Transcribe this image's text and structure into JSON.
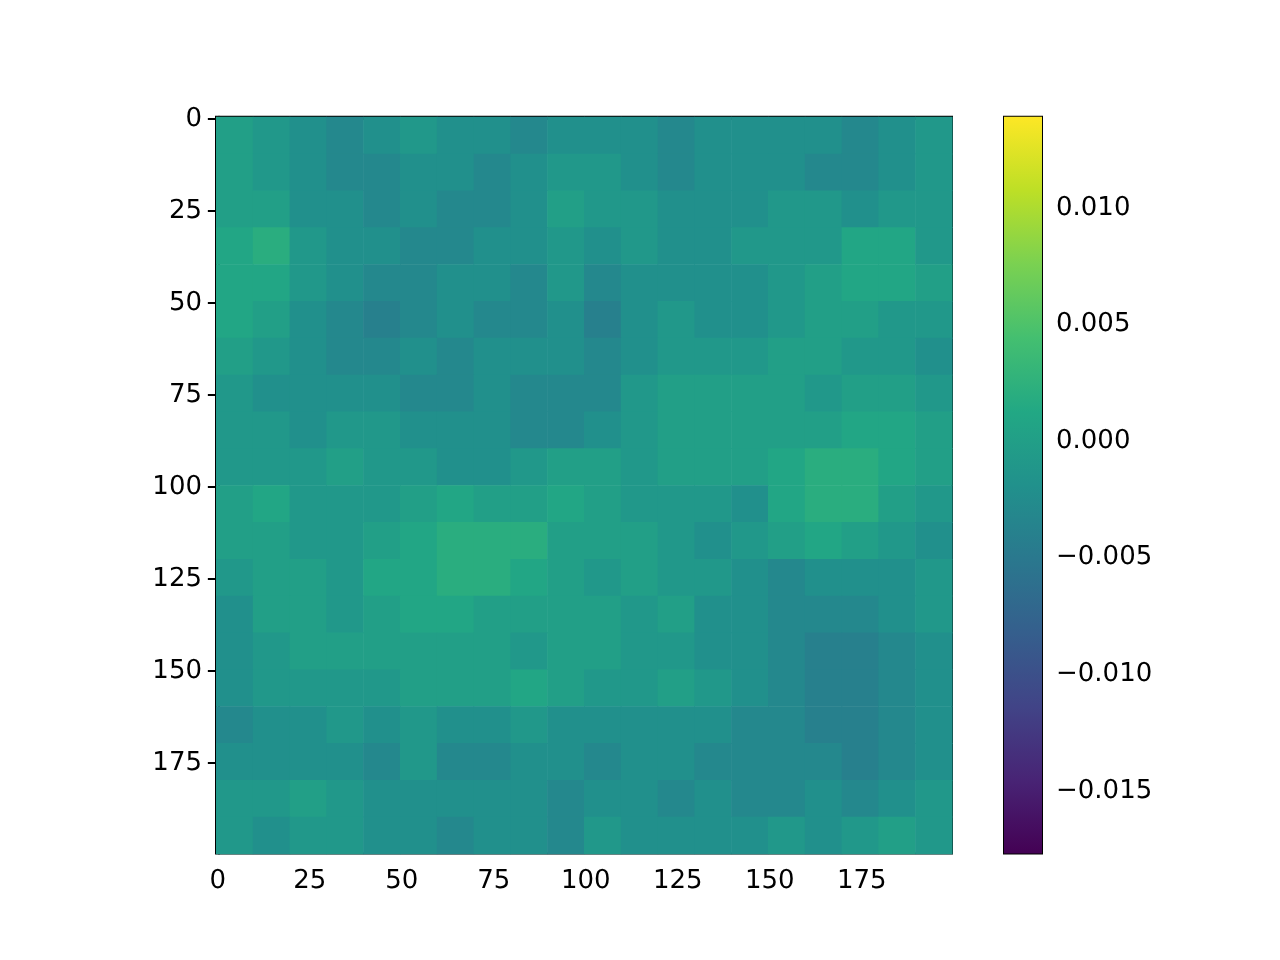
{
  "chart_data": {
    "type": "heatmap",
    "x": [
      4.5,
      14.5,
      24.5,
      34.5,
      44.5,
      54.5,
      64.5,
      74.5,
      84.5,
      94.5,
      104.5,
      114.5,
      124.5,
      134.5,
      144.5,
      154.5,
      164.5,
      174.5,
      184.5,
      194.5
    ],
    "y": [
      4.5,
      14.5,
      24.5,
      34.5,
      44.5,
      54.5,
      64.5,
      74.5,
      84.5,
      94.5,
      104.5,
      114.5,
      124.5,
      134.5,
      144.5,
      154.5,
      164.5,
      174.5,
      184.5,
      194.5
    ],
    "cells": [
      [
        0,
        -0.001,
        -0.002,
        -0.003,
        -0.002,
        -0.001,
        -0.002,
        -0.002,
        -0.003,
        -0.002,
        -0.002,
        -0.002,
        -0.003,
        -0.002,
        -0.002,
        -0.002,
        -0.002,
        -0.003,
        -0.002,
        -0.001
      ],
      [
        0,
        -0.001,
        -0.002,
        -0.003,
        -0.003,
        -0.002,
        -0.002,
        -0.003,
        -0.002,
        -0.001,
        -0.001,
        -0.002,
        -0.003,
        -0.002,
        -0.002,
        -0.002,
        -0.003,
        -0.003,
        -0.002,
        -0.001
      ],
      [
        0,
        0,
        -0.002,
        -0.002,
        -0.003,
        -0.002,
        -0.003,
        -0.003,
        -0.002,
        0,
        -0.001,
        -0.001,
        -0.002,
        -0.002,
        -0.002,
        -0.001,
        -0.001,
        -0.002,
        -0.001,
        -0.001
      ],
      [
        0.001,
        0.002,
        -0.001,
        -0.002,
        -0.002,
        -0.003,
        -0.003,
        -0.002,
        -0.002,
        -0.001,
        -0.002,
        -0.001,
        -0.002,
        -0.002,
        -0.001,
        -0.001,
        -0.001,
        0.001,
        0.001,
        -0.001
      ],
      [
        0.001,
        0.001,
        -0.001,
        -0.002,
        -0.003,
        -0.003,
        -0.002,
        -0.002,
        -0.003,
        -0.001,
        -0.003,
        -0.002,
        -0.002,
        -0.002,
        -0.002,
        -0.001,
        0,
        0.001,
        0.001,
        0
      ],
      [
        0.001,
        0,
        -0.002,
        -0.003,
        -0.004,
        -0.003,
        -0.002,
        -0.003,
        -0.003,
        -0.002,
        -0.004,
        -0.002,
        -0.001,
        -0.002,
        -0.002,
        -0.001,
        0,
        0,
        -0.001,
        -0.001
      ],
      [
        0,
        -0.001,
        -0.002,
        -0.003,
        -0.003,
        -0.002,
        -0.003,
        -0.002,
        -0.002,
        -0.002,
        -0.003,
        -0.002,
        -0.001,
        -0.001,
        -0.001,
        0,
        0,
        -0.001,
        -0.001,
        -0.002
      ],
      [
        -0.001,
        -0.002,
        -0.002,
        -0.002,
        -0.002,
        -0.003,
        -0.003,
        -0.002,
        -0.003,
        -0.003,
        -0.003,
        -0.001,
        0,
        0,
        0,
        0,
        -0.001,
        0,
        0,
        -0.001
      ],
      [
        -0.001,
        -0.001,
        -0.002,
        -0.001,
        -0.001,
        -0.002,
        -0.002,
        -0.002,
        -0.003,
        -0.003,
        -0.002,
        -0.001,
        0,
        0,
        0,
        0,
        0,
        0.001,
        0.001,
        0
      ],
      [
        -0.001,
        -0.001,
        -0.001,
        0,
        -0.001,
        -0.001,
        -0.002,
        -0.002,
        -0.001,
        0,
        0,
        -0.001,
        0,
        0,
        0,
        0.001,
        0.002,
        0.002,
        0.001,
        0
      ],
      [
        0,
        0.001,
        -0.001,
        -0.001,
        -0.001,
        0,
        0.001,
        0,
        0,
        0.001,
        0,
        -0.001,
        -0.001,
        -0.001,
        -0.002,
        0.001,
        0.002,
        0.002,
        0,
        -0.001
      ],
      [
        0,
        0,
        -0.001,
        -0.001,
        0,
        0.001,
        0.002,
        0.002,
        0.002,
        0,
        0,
        0,
        -0.001,
        -0.002,
        -0.001,
        0,
        0.001,
        0,
        -0.001,
        -0.002
      ],
      [
        -0.001,
        0,
        0,
        -0.001,
        0.001,
        0.001,
        0.002,
        0.002,
        0.001,
        0,
        -0.001,
        0,
        -0.001,
        -0.001,
        -0.002,
        -0.003,
        -0.002,
        -0.002,
        -0.002,
        -0.001
      ],
      [
        -0.002,
        0,
        0,
        -0.001,
        0,
        0.001,
        0.001,
        0,
        0,
        0,
        0,
        -0.001,
        0,
        -0.002,
        -0.002,
        -0.003,
        -0.003,
        -0.003,
        -0.002,
        -0.001
      ],
      [
        -0.002,
        -0.001,
        0,
        0,
        0,
        0,
        0,
        0,
        -0.001,
        0,
        0,
        -0.001,
        -0.001,
        -0.002,
        -0.002,
        -0.003,
        -0.004,
        -0.004,
        -0.003,
        -0.002
      ],
      [
        -0.002,
        -0.001,
        -0.001,
        -0.001,
        -0.001,
        0,
        0,
        0,
        0.001,
        0,
        -0.001,
        -0.001,
        0,
        -0.001,
        -0.002,
        -0.003,
        -0.004,
        -0.004,
        -0.003,
        -0.002
      ],
      [
        -0.003,
        -0.002,
        -0.002,
        -0.001,
        -0.002,
        -0.001,
        -0.002,
        -0.002,
        -0.001,
        -0.002,
        -0.002,
        -0.002,
        -0.002,
        -0.002,
        -0.003,
        -0.003,
        -0.004,
        -0.004,
        -0.003,
        -0.002
      ],
      [
        -0.002,
        -0.002,
        -0.002,
        -0.002,
        -0.003,
        -0.001,
        -0.003,
        -0.003,
        -0.002,
        -0.002,
        -0.003,
        -0.002,
        -0.002,
        -0.003,
        -0.003,
        -0.003,
        -0.003,
        -0.004,
        -0.003,
        -0.002
      ],
      [
        -0.001,
        -0.001,
        0,
        -0.001,
        -0.002,
        -0.002,
        -0.002,
        -0.002,
        -0.002,
        -0.003,
        -0.002,
        -0.002,
        -0.003,
        -0.002,
        -0.003,
        -0.003,
        -0.002,
        -0.003,
        -0.002,
        -0.001
      ],
      [
        -0.001,
        -0.002,
        -0.001,
        -0.001,
        -0.002,
        -0.002,
        -0.003,
        -0.002,
        -0.002,
        -0.003,
        -0.001,
        -0.002,
        -0.002,
        -0.002,
        -0.002,
        -0.001,
        -0.002,
        -0.001,
        0,
        -0.001
      ]
    ],
    "clim": [
      -0.0177,
      0.0139
    ],
    "cticks": [
      {
        "value": -0.015,
        "label": "−0.015"
      },
      {
        "value": -0.01,
        "label": "−0.010"
      },
      {
        "value": -0.005,
        "label": "−0.005"
      },
      {
        "value": 0,
        "label": "0.000"
      },
      {
        "value": 0.005,
        "label": "0.005"
      },
      {
        "value": 0.01,
        "label": "0.010"
      }
    ],
    "xlim": [
      -0.5,
      199.5
    ],
    "xticks": [
      0,
      25,
      50,
      75,
      100,
      125,
      150,
      175
    ],
    "ylim": [
      199.5,
      -0.5
    ],
    "yticks": [
      0,
      25,
      50,
      75,
      100,
      125,
      150,
      175
    ]
  }
}
